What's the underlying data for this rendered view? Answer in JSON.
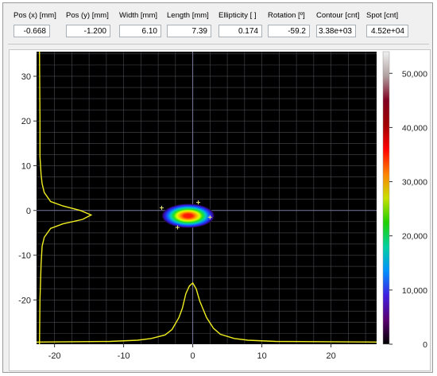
{
  "metrics": [
    {
      "label": "Pos (x) [mm]",
      "value": "-0.668"
    },
    {
      "label": "Pos (y) [mm]",
      "value": "-1.200"
    },
    {
      "label": "Width [mm]",
      "value": "6.10"
    },
    {
      "label": "Length [mm]",
      "value": "7.39"
    },
    {
      "label": "Ellipticity [ ]",
      "value": "0.174"
    },
    {
      "label": "Rotation [º]",
      "value": "-59.2"
    },
    {
      "label": "Contour [cnt]",
      "value": "3.38e+03"
    },
    {
      "label": "Spot [cnt]",
      "value": "4.52e+04"
    }
  ],
  "chart_data": {
    "type": "heatmap",
    "description_units": "mm",
    "x_ticks": [
      "-20",
      "-10",
      "0",
      "10",
      "20"
    ],
    "y_ticks": [
      "30",
      "20",
      "10",
      "0",
      "-10",
      "-20"
    ],
    "xlim": [
      -22.6,
      26.6
    ],
    "ylim": [
      -29.9,
      35.5
    ],
    "grid": true,
    "spot": {
      "x_center": -0.668,
      "y_center": -1.2,
      "width": 6.1,
      "length": 7.39
    },
    "markers": [
      [
        -4.5,
        0.6
      ],
      [
        0.8,
        1.8
      ],
      [
        2.5,
        -1.5
      ],
      [
        -2.2,
        -3.8
      ]
    ],
    "colorbar": {
      "ticks": [
        "50,000",
        "40,000",
        "30,000",
        "20,000",
        "10,000",
        "0"
      ],
      "range": [
        0,
        54000
      ],
      "colors": [
        "#000000",
        "#5a0070",
        "#4020e0",
        "#0090ff",
        "#00d0a0",
        "#20d000",
        "#c8e000",
        "#ff8000",
        "#ff0000",
        "#a00000",
        "#800020",
        "#b0a0a0",
        "#f0f0f0"
      ]
    },
    "x_profile": {
      "x": [
        -22.6,
        -12,
        -8,
        -6,
        -4,
        -3,
        -2,
        -1.5,
        -1,
        -0.5,
        0,
        0.5,
        1,
        2,
        3,
        4,
        6,
        8,
        12,
        26.6
      ],
      "intensity": [
        0.01,
        0.02,
        0.04,
        0.07,
        0.13,
        0.22,
        0.42,
        0.58,
        0.82,
        0.95,
        1.0,
        0.9,
        0.7,
        0.42,
        0.24,
        0.14,
        0.07,
        0.04,
        0.02,
        0.01
      ]
    },
    "y_profile": {
      "y": [
        -29.9,
        -20,
        -12,
        -8,
        -6,
        -4,
        -3,
        -2,
        -1,
        0,
        1,
        2,
        4,
        6,
        8,
        12,
        20,
        35.5
      ],
      "intensity": [
        0.01,
        0.02,
        0.04,
        0.06,
        0.1,
        0.22,
        0.45,
        0.82,
        0.98,
        0.78,
        0.45,
        0.22,
        0.1,
        0.06,
        0.04,
        0.02,
        0.02,
        0.01
      ]
    },
    "colors": {
      "background": "#000000",
      "grid": "#4a4a52",
      "axis_line": "#7a7aa0",
      "profile": "#f0ee20"
    }
  }
}
